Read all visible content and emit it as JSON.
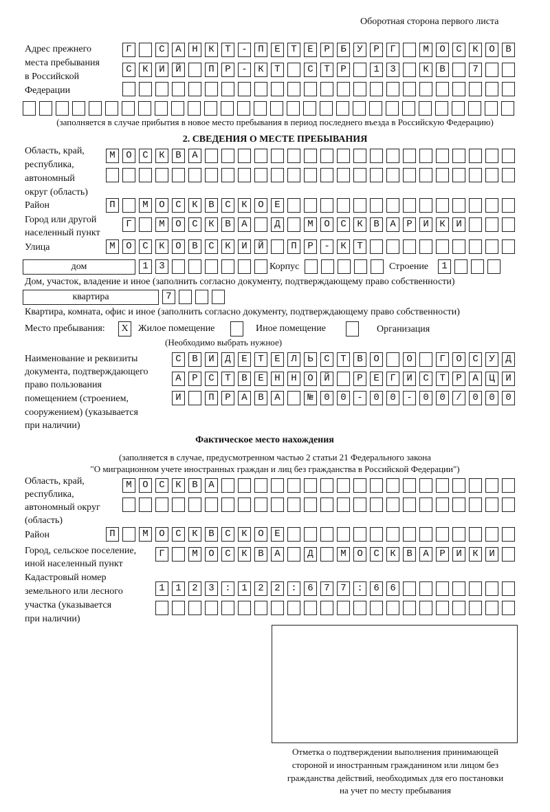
{
  "header": "Оборотная сторона первого листа",
  "previous_address": {
    "label": [
      "Адрес прежнего",
      "места пребывания",
      "в Российской",
      "Федерации"
    ],
    "rows": [
      "Г САНКТ-ПЕТЕРБУРГ МОСКОВ",
      "СКИЙ ПР-КТ СТР 13 КВ 7",
      "",
      ""
    ],
    "note": "(заполняется в случае прибытия в новое место пребывания в период последнего въезда в Российскую Федерацию)"
  },
  "section2": {
    "title": "2. СВЕДЕНИЯ О МЕСТЕ ПРЕБЫВАНИЯ",
    "region_label": [
      "Область, край,",
      "республика,",
      "автономный",
      "округ (область)"
    ],
    "region_rows": [
      "МОСКВА",
      ""
    ],
    "district_label": "Район",
    "district": "П МОСКВСКОЕ",
    "city_label": [
      "Город или другой",
      "населенный пункт"
    ],
    "city": "Г МОСКВА Д МОСКВАРИКИ",
    "street_label": "Улица",
    "street": "МОСКОВСКИЙ ПР-КТ",
    "house_type": "дом",
    "house": "13",
    "korpus_label": "Корпус",
    "korpus": "",
    "building_label": "Строение",
    "building": "1",
    "house_note": "Дом, участок, владение и иное (заполнить согласно документу, подтверждающему право собственности)",
    "apt_type": "квартира",
    "apt": "7",
    "apt_note": "Квартира, комната, офис и иное (заполнить согласно документу, подтверждающему право собственности)",
    "place_label": "Место пребывания:",
    "place_options": [
      {
        "label": "Жилое помещение",
        "mark": "Х"
      },
      {
        "label": "Иное помещение",
        "mark": ""
      },
      {
        "label": "Организация",
        "mark": ""
      }
    ],
    "place_note": "(Необходимо выбрать нужное)",
    "doc_label": [
      "Наименование и реквизиты",
      "документа, подтверждающего",
      "право пользования",
      "помещением (строением,",
      "сооружением) (указывается",
      "при наличии)"
    ],
    "doc_rows": [
      "СВИДЕТЕЛЬСТВО О ГОСУД",
      "АРСТВЕННОЙ РЕГИСТРАЦИ",
      "И ПРАВА №00-00-00/000"
    ]
  },
  "actual": {
    "title": "Фактическое место нахождения",
    "note": [
      "(заполняется в случае, предусмотренном частью 2 статьи 21 Федерального закона",
      "\"О миграционном учете иностранных граждан и лиц без гражданства в Российской Федерации\")"
    ],
    "region_label": [
      "Область, край,",
      "республика,",
      "автономный округ",
      "(область)"
    ],
    "region_rows": [
      "МОСКВА",
      ""
    ],
    "district_label": "Район",
    "district": "П МОСКВСКОЕ",
    "city_label": [
      "Город, сельское поселение,",
      "иной населенный пункт"
    ],
    "city": "Г МОСКВА Д МОСКВАРИКИ",
    "cadastral_label": [
      "Кадастровый номер",
      "земельного или лесного",
      "участка (указывается",
      "при наличии)"
    ],
    "cadastral_rows": [
      "1123:122:677:66",
      ""
    ]
  },
  "stamp_caption": [
    "Отметка о подтверждении выполнения принимающей",
    "стороной и иностранным гражданином или лицом без",
    "гражданства действий, необходимых для его постановки",
    "на учет по месту пребывания"
  ]
}
